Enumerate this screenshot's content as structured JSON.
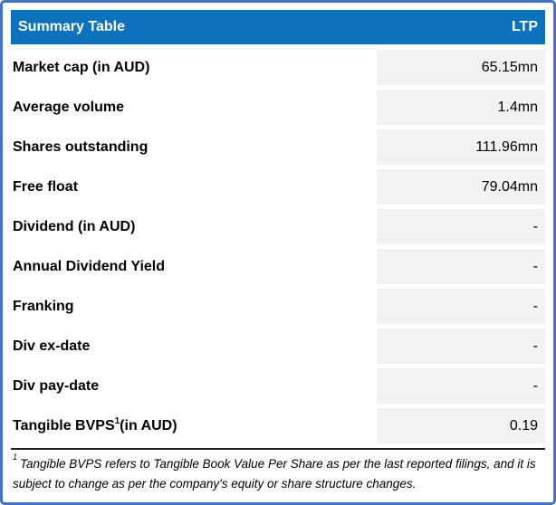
{
  "colors": {
    "header_bg": "#0D72BE",
    "outer_border": "#4472C4",
    "value_cell_bg": "#F2F2F2",
    "header_text": "#FFFFFF",
    "body_text": "#000000"
  },
  "table": {
    "header": {
      "title": "Summary Table",
      "value_column": "LTP"
    },
    "rows": [
      {
        "label": "Market cap (in AUD)",
        "value": "65.15mn"
      },
      {
        "label": "Average volume",
        "value": "1.4mn"
      },
      {
        "label": "Shares outstanding",
        "value": "111.96mn"
      },
      {
        "label": "Free float",
        "value": "79.04mn"
      },
      {
        "label": "Dividend (in AUD)",
        "value": "-"
      },
      {
        "label": "Annual Dividend Yield",
        "value": "-"
      },
      {
        "label": "Franking",
        "value": "-"
      },
      {
        "label": "Div ex-date",
        "value": "-"
      },
      {
        "label": "Div pay-date",
        "value": "-"
      },
      {
        "label": "Tangible BVPS",
        "label_sup": "1",
        "label_suffix": " (in AUD)",
        "value": "0.19"
      }
    ],
    "footnote": {
      "marker": "1",
      "text": "Tangible BVPS refers to Tangible Book Value Per Share as per the last reported filings, and it is subject to change as per the company's equity or share structure changes."
    }
  }
}
